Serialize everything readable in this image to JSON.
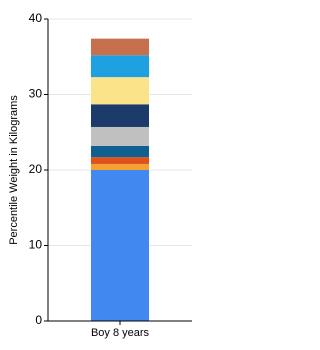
{
  "chart_data": {
    "type": "stacked_bar",
    "y_label": "Percentile Weight in Kilograms",
    "categories": [
      "Boy 8 years"
    ],
    "series": [
      {
        "color": "#4189f0",
        "values": [
          20.0
        ]
      },
      {
        "color": "#f5a030",
        "values": [
          0.8
        ]
      },
      {
        "color": "#e0501a",
        "values": [
          0.9
        ]
      },
      {
        "color": "#0f6090",
        "values": [
          1.5
        ]
      },
      {
        "color": "#c0c0c0",
        "values": [
          2.5
        ]
      },
      {
        "color": "#1c3a6a",
        "values": [
          3.0
        ]
      },
      {
        "color": "#fbe38a",
        "values": [
          3.6
        ]
      },
      {
        "color": "#1fa0e0",
        "values": [
          2.9
        ]
      },
      {
        "color": "#c8704e",
        "values": [
          2.2
        ]
      }
    ],
    "ylim": [
      0,
      40
    ],
    "yticks": [
      0,
      10,
      20,
      30,
      40
    ],
    "grid": true
  }
}
